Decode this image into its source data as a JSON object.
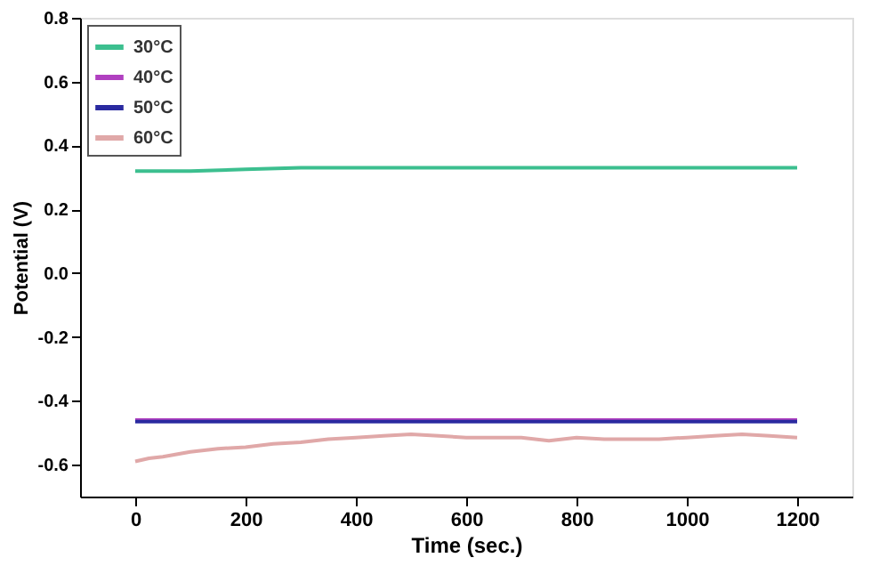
{
  "chart_data": {
    "type": "line",
    "xlabel": "Time (sec.)",
    "ylabel": "Potential (V)",
    "xlim": [
      -100,
      1300
    ],
    "xticks": [
      0,
      200,
      400,
      600,
      800,
      {
        "value": 1000,
        "label": "1000"
      },
      {
        "value": 1200,
        "label": "1200"
      }
    ],
    "ylim": [
      -0.7,
      0.8
    ],
    "yticks": [
      -0.6,
      -0.4,
      -0.2,
      {
        "value": 0,
        "label": "0.0"
      },
      0.2,
      0.4,
      0.6,
      0.8
    ],
    "grid": false,
    "legend": "top left",
    "line_style": "solid",
    "marker": "none",
    "series": [
      {
        "name": "30°C",
        "color": "#3cbf8f",
        "x": [
          0,
          100,
          200,
          300,
          400,
          600,
          800,
          1000,
          1200
        ],
        "values": [
          0.32,
          0.32,
          0.325,
          0.33,
          0.33,
          0.33,
          0.33,
          0.33,
          0.33
        ]
      },
      {
        "name": "40°C",
        "color": "#b040c0",
        "x": [
          0,
          300,
          600,
          900,
          1200
        ],
        "values": [
          -0.46,
          -0.46,
          -0.46,
          -0.46,
          -0.46
        ]
      },
      {
        "name": "50°C",
        "color": "#2a2aa0",
        "x": [
          0,
          300,
          600,
          900,
          1200
        ],
        "values": [
          -0.465,
          -0.465,
          -0.465,
          -0.465,
          -0.465
        ]
      },
      {
        "name": "60°C",
        "color": "#e0a8a8",
        "x": [
          0,
          25,
          50,
          100,
          150,
          200,
          250,
          300,
          350,
          400,
          450,
          500,
          550,
          600,
          650,
          700,
          750,
          800,
          850,
          900,
          950,
          1000,
          1050,
          1100,
          1150,
          1200
        ],
        "values": [
          -0.59,
          -0.58,
          -0.575,
          -0.56,
          -0.55,
          -0.545,
          -0.535,
          -0.53,
          -0.52,
          -0.515,
          -0.51,
          -0.505,
          -0.51,
          -0.515,
          -0.515,
          -0.515,
          -0.525,
          -0.515,
          -0.52,
          -0.52,
          -0.52,
          -0.515,
          -0.51,
          -0.505,
          -0.51,
          -0.515
        ]
      }
    ]
  }
}
